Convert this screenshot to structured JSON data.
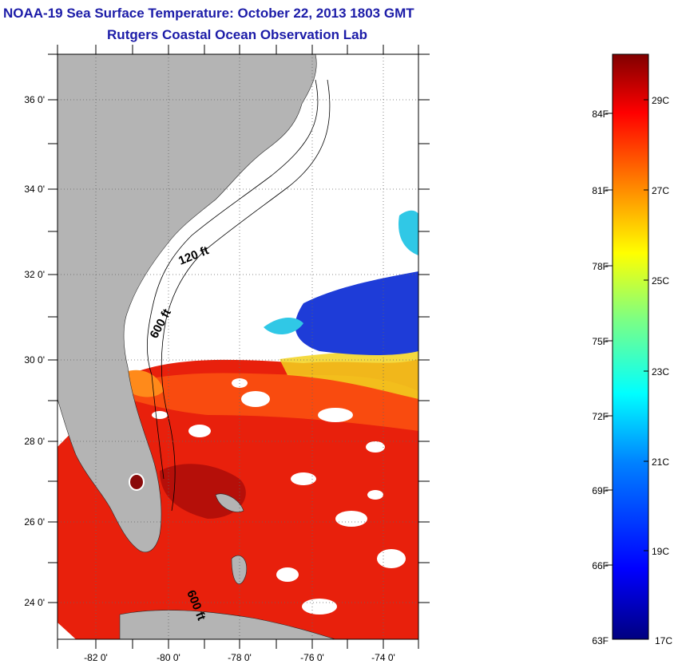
{
  "header": {
    "title": "NOAA-19 Sea Surface Temperature:  October 22, 2013 1803 GMT",
    "subtitle": "Rutgers Coastal Ocean Observation Lab"
  },
  "map": {
    "lat_labels": [
      "36 0'",
      "34 0'",
      "32 0'",
      "30 0'",
      "28 0'",
      "26 0'",
      "24 0'"
    ],
    "lon_labels": [
      "-82 0'",
      "-80 0'",
      "-78 0'",
      "-76 0'",
      "-74 0'"
    ],
    "contours": [
      "120 ft",
      "600 ft",
      "600 ft"
    ],
    "land_color": "#b4b4b4",
    "grid": true
  },
  "colorbar": {
    "f_labels": [
      "84F",
      "81F",
      "78F",
      "75F",
      "72F",
      "69F",
      "66F",
      "63F"
    ],
    "c_labels": [
      "29C",
      "27C",
      "25C",
      "23C",
      "21C",
      "19C",
      "17C"
    ],
    "colors": [
      "#7f0000",
      "#ff0000",
      "#ff8000",
      "#ffff00",
      "#00ffff",
      "#0000ff",
      "#00008b"
    ]
  }
}
